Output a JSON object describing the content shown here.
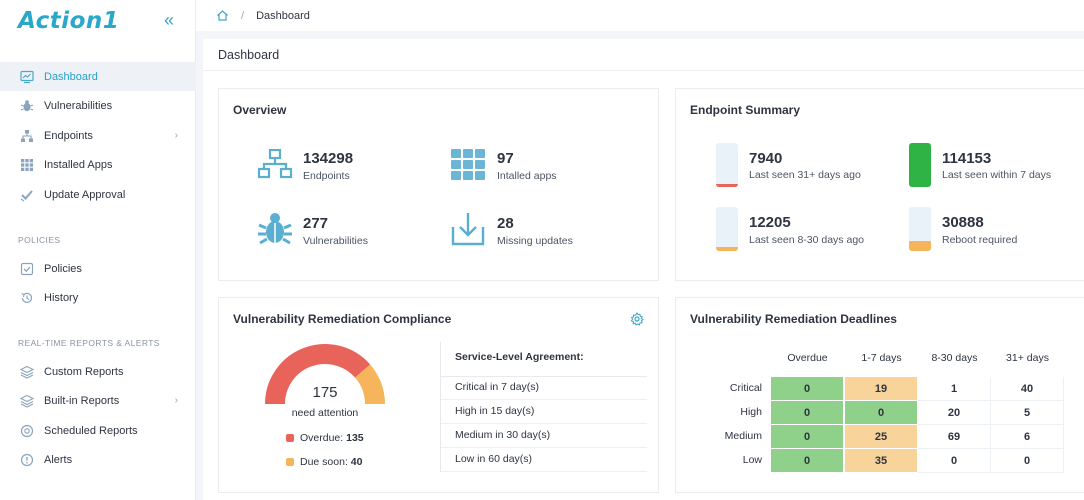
{
  "brand": {
    "logo_text": "Action1",
    "accent": "#2aa7c9"
  },
  "sidebar": {
    "collapse_icon": "double-chevron-left-icon",
    "items": [
      {
        "label": "Dashboard",
        "icon": "monitor-chart-icon"
      },
      {
        "label": "Vulnerabilities",
        "icon": "bug-icon"
      },
      {
        "label": "Endpoints",
        "icon": "network-icon"
      },
      {
        "label": "Installed Apps",
        "icon": "apps-grid-icon"
      },
      {
        "label": "Update Approval",
        "icon": "check-badge-icon"
      }
    ],
    "policies_label": "POLICIES",
    "policy_items": [
      {
        "label": "Policies",
        "icon": "policy-check-icon"
      },
      {
        "label": "History",
        "icon": "history-icon"
      }
    ],
    "reports_label": "REAL-TIME REPORTS & ALERTS",
    "report_items": [
      {
        "label": "Custom Reports",
        "icon": "layers-icon"
      },
      {
        "label": "Built-in Reports",
        "icon": "layers-icon"
      },
      {
        "label": "Scheduled Reports",
        "icon": "scheduled-icon"
      },
      {
        "label": "Alerts",
        "icon": "alert-icon"
      }
    ]
  },
  "breadcrumb": {
    "home_icon": "home-icon",
    "separator": "/",
    "current": "Dashboard"
  },
  "page": {
    "title": "Dashboard"
  },
  "overview": {
    "title": "Overview",
    "stats": [
      {
        "value": "134298",
        "label": "Endpoints",
        "icon": "network-icon"
      },
      {
        "value": "97",
        "label": "Intalled apps",
        "icon": "apps-grid-icon"
      },
      {
        "value": "277",
        "label": "Vulnerabilities",
        "icon": "bug-icon"
      },
      {
        "value": "28",
        "label": "Missing updates",
        "icon": "download-icon"
      }
    ]
  },
  "endpoint_summary": {
    "title": "Endpoint Summary",
    "items": [
      {
        "value": "7940",
        "label": "Last seen 31+ days ago",
        "color": "#e8645a",
        "fill": 0.06
      },
      {
        "value": "114153",
        "label": "Last seen within 7 days",
        "color": "#2fb344",
        "fill": 1.0
      },
      {
        "value": "12205",
        "label": "Last seen 8-30 days ago",
        "color": "#f6b55a",
        "fill": 0.08
      },
      {
        "value": "30888",
        "label": "Reboot required",
        "color": "#f6b55a",
        "fill": 0.22
      }
    ]
  },
  "compliance": {
    "title": "Vulnerability Remediation Compliance",
    "settings_icon": "gear-icon",
    "total": "175",
    "total_label": "need attention",
    "overdue_label": "Overdue:",
    "overdue_value": "135",
    "overdue_color": "#e8645a",
    "due_label": "Due soon:",
    "due_value": "40",
    "due_color": "#f6b55a",
    "overdue_fraction": 0.771,
    "sla_title": "Service-Level Agreement:",
    "sla_rows": [
      "Critical in 7 day(s)",
      "High in 15 day(s)",
      "Medium in 30 day(s)",
      "Low in 60 day(s)"
    ]
  },
  "deadlines": {
    "title": "Vulnerability Remediation Deadlines",
    "columns": [
      "Overdue",
      "1-7 days",
      "8-30 days",
      "31+ days"
    ],
    "rows": [
      {
        "label": "Critical",
        "values": [
          "0",
          "19",
          "1",
          "40"
        ]
      },
      {
        "label": "High",
        "values": [
          "0",
          "0",
          "20",
          "5"
        ]
      },
      {
        "label": "Medium",
        "values": [
          "0",
          "25",
          "69",
          "6"
        ]
      },
      {
        "label": "Low",
        "values": [
          "0",
          "35",
          "0",
          "0"
        ]
      }
    ],
    "colors": {
      "green": "#8fd18b",
      "orange": "#f9d49a",
      "white": "#ffffff"
    }
  }
}
